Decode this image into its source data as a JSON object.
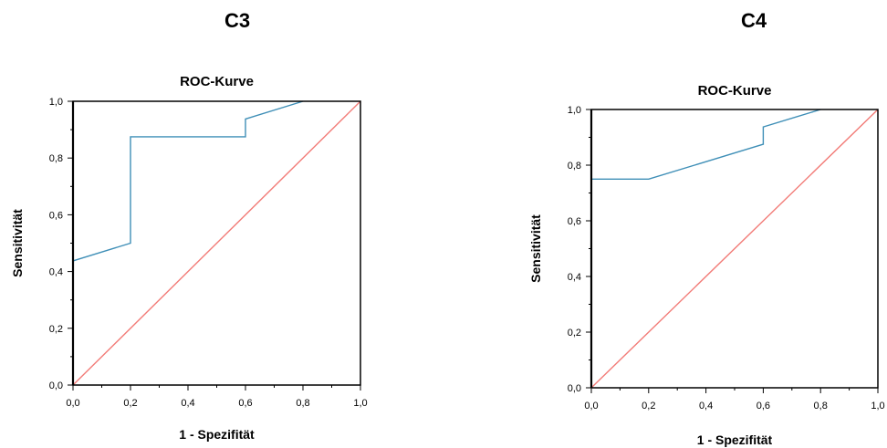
{
  "panels": [
    {
      "label": "C3"
    },
    {
      "label": "C4"
    }
  ],
  "colors": {
    "roc_curve": "#3f8fb7",
    "reference_line": "#f27b77",
    "axis": "#000000"
  },
  "chart_data": [
    {
      "type": "line",
      "title": "ROC-Kurve",
      "xlabel": "1 - Spezifität",
      "ylabel": "Sensitivität",
      "xlim": [
        0.0,
        1.0
      ],
      "ylim": [
        0.0,
        1.0
      ],
      "xticks": [
        "0,0",
        "0,2",
        "0,4",
        "0,6",
        "0,8",
        "1,0"
      ],
      "yticks": [
        "0,0",
        "0,2",
        "0,4",
        "0,6",
        "0,8",
        "1,0"
      ],
      "grid": false,
      "series": [
        {
          "x": [
            0.0,
            0.0,
            0.2,
            0.2,
            0.6,
            0.6,
            0.8
          ],
          "y": [
            0.0,
            0.4375,
            0.5,
            0.875,
            0.875,
            0.9375,
            1.0
          ]
        },
        {
          "x": [
            0.0,
            1.0
          ],
          "y": [
            0.0,
            1.0
          ]
        }
      ]
    },
    {
      "type": "line",
      "title": "ROC-Kurve",
      "xlabel": "1 - Spezifität",
      "ylabel": "Sensitivität",
      "xlim": [
        0.0,
        1.0
      ],
      "ylim": [
        0.0,
        1.0
      ],
      "xticks": [
        "0,0",
        "0,2",
        "0,4",
        "0,6",
        "0,8",
        "1,0"
      ],
      "yticks": [
        "0,0",
        "0,2",
        "0,4",
        "0,6",
        "0,8",
        "1,0"
      ],
      "grid": false,
      "series": [
        {
          "x": [
            0.0,
            0.0,
            0.2,
            0.6,
            0.6,
            0.8
          ],
          "y": [
            0.0,
            0.75,
            0.75,
            0.875,
            0.9375,
            1.0
          ]
        },
        {
          "x": [
            0.0,
            1.0
          ],
          "y": [
            0.0,
            1.0
          ]
        }
      ]
    }
  ]
}
